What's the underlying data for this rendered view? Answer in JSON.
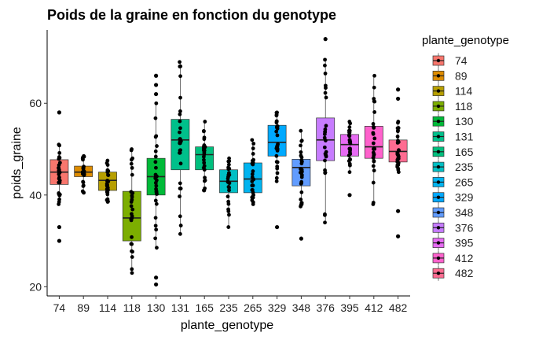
{
  "chart_data": {
    "type": "boxplot",
    "title": "Poids de la graine en fonction du genotype",
    "xlabel": "plante_genotype",
    "ylabel": "poids_graine",
    "ylim": [
      18,
      76
    ],
    "yticks": [
      20,
      40,
      60
    ],
    "grid": false,
    "legend_title": "plante_genotype",
    "legend_position": "right",
    "categories": [
      "74",
      "89",
      "114",
      "118",
      "130",
      "131",
      "165",
      "235",
      "265",
      "329",
      "348",
      "376",
      "395",
      "412",
      "482"
    ],
    "colors": [
      "#F8766D",
      "#DE8C00",
      "#B79F00",
      "#7CAE00",
      "#00BA38",
      "#00C08B",
      "#00BF7D",
      "#00BFC4",
      "#00B4F0",
      "#00A9FF",
      "#619CFF",
      "#C77CFF",
      "#E76BF3",
      "#FF61CC",
      "#FF6C91"
    ],
    "boxes": [
      {
        "q1": 42.3,
        "median": 45.0,
        "q3": 47.7,
        "low": 38.0,
        "high": 51.0,
        "outliers": [
          58.0,
          33.0,
          30.0
        ]
      },
      {
        "q1": 44.0,
        "median": 45.0,
        "q3": 46.3,
        "low": 40.5,
        "high": 48.5,
        "outliers": []
      },
      {
        "q1": 41.0,
        "median": 43.2,
        "q3": 45.0,
        "low": 38.5,
        "high": 47.5,
        "outliers": []
      },
      {
        "q1": 30.0,
        "median": 35.0,
        "q3": 40.8,
        "low": 23.0,
        "high": 50.0,
        "outliers": []
      },
      {
        "q1": 40.0,
        "median": 44.0,
        "q3": 48.0,
        "low": 28.5,
        "high": 60.0,
        "outliers": [
          66.0,
          64.0,
          62.0,
          22.0,
          20.5
        ]
      },
      {
        "q1": 45.5,
        "median": 52.0,
        "q3": 56.5,
        "low": 31.5,
        "high": 69.0,
        "outliers": []
      },
      {
        "q1": 45.5,
        "median": 48.8,
        "q3": 50.5,
        "low": 41.0,
        "high": 56.0,
        "outliers": []
      },
      {
        "q1": 40.5,
        "median": 43.0,
        "q3": 45.5,
        "low": 33.0,
        "high": 48.0,
        "outliers": []
      },
      {
        "q1": 40.5,
        "median": 43.5,
        "q3": 47.0,
        "low": 38.0,
        "high": 52.0,
        "outliers": []
      },
      {
        "q1": 48.5,
        "median": 51.5,
        "q3": 55.2,
        "low": 43.0,
        "high": 58.0,
        "outliers": [
          33.0
        ]
      },
      {
        "q1": 42.0,
        "median": 46.0,
        "q3": 47.8,
        "low": 37.5,
        "high": 54.0,
        "outliers": [
          30.5
        ]
      },
      {
        "q1": 47.5,
        "median": 52.0,
        "q3": 56.8,
        "low": 34.0,
        "high": 69.5,
        "outliers": [
          74.0
        ]
      },
      {
        "q1": 48.5,
        "median": 51.0,
        "q3": 53.2,
        "low": 45.0,
        "high": 56.0,
        "outliers": [
          40.0
        ]
      },
      {
        "q1": 48.0,
        "median": 50.5,
        "q3": 55.0,
        "low": 38.0,
        "high": 66.0,
        "outliers": []
      },
      {
        "q1": 47.2,
        "median": 49.5,
        "q3": 52.0,
        "low": 45.0,
        "high": 56.0,
        "outliers": [
          63.0,
          61.0,
          36.5,
          31.0
        ]
      }
    ]
  }
}
